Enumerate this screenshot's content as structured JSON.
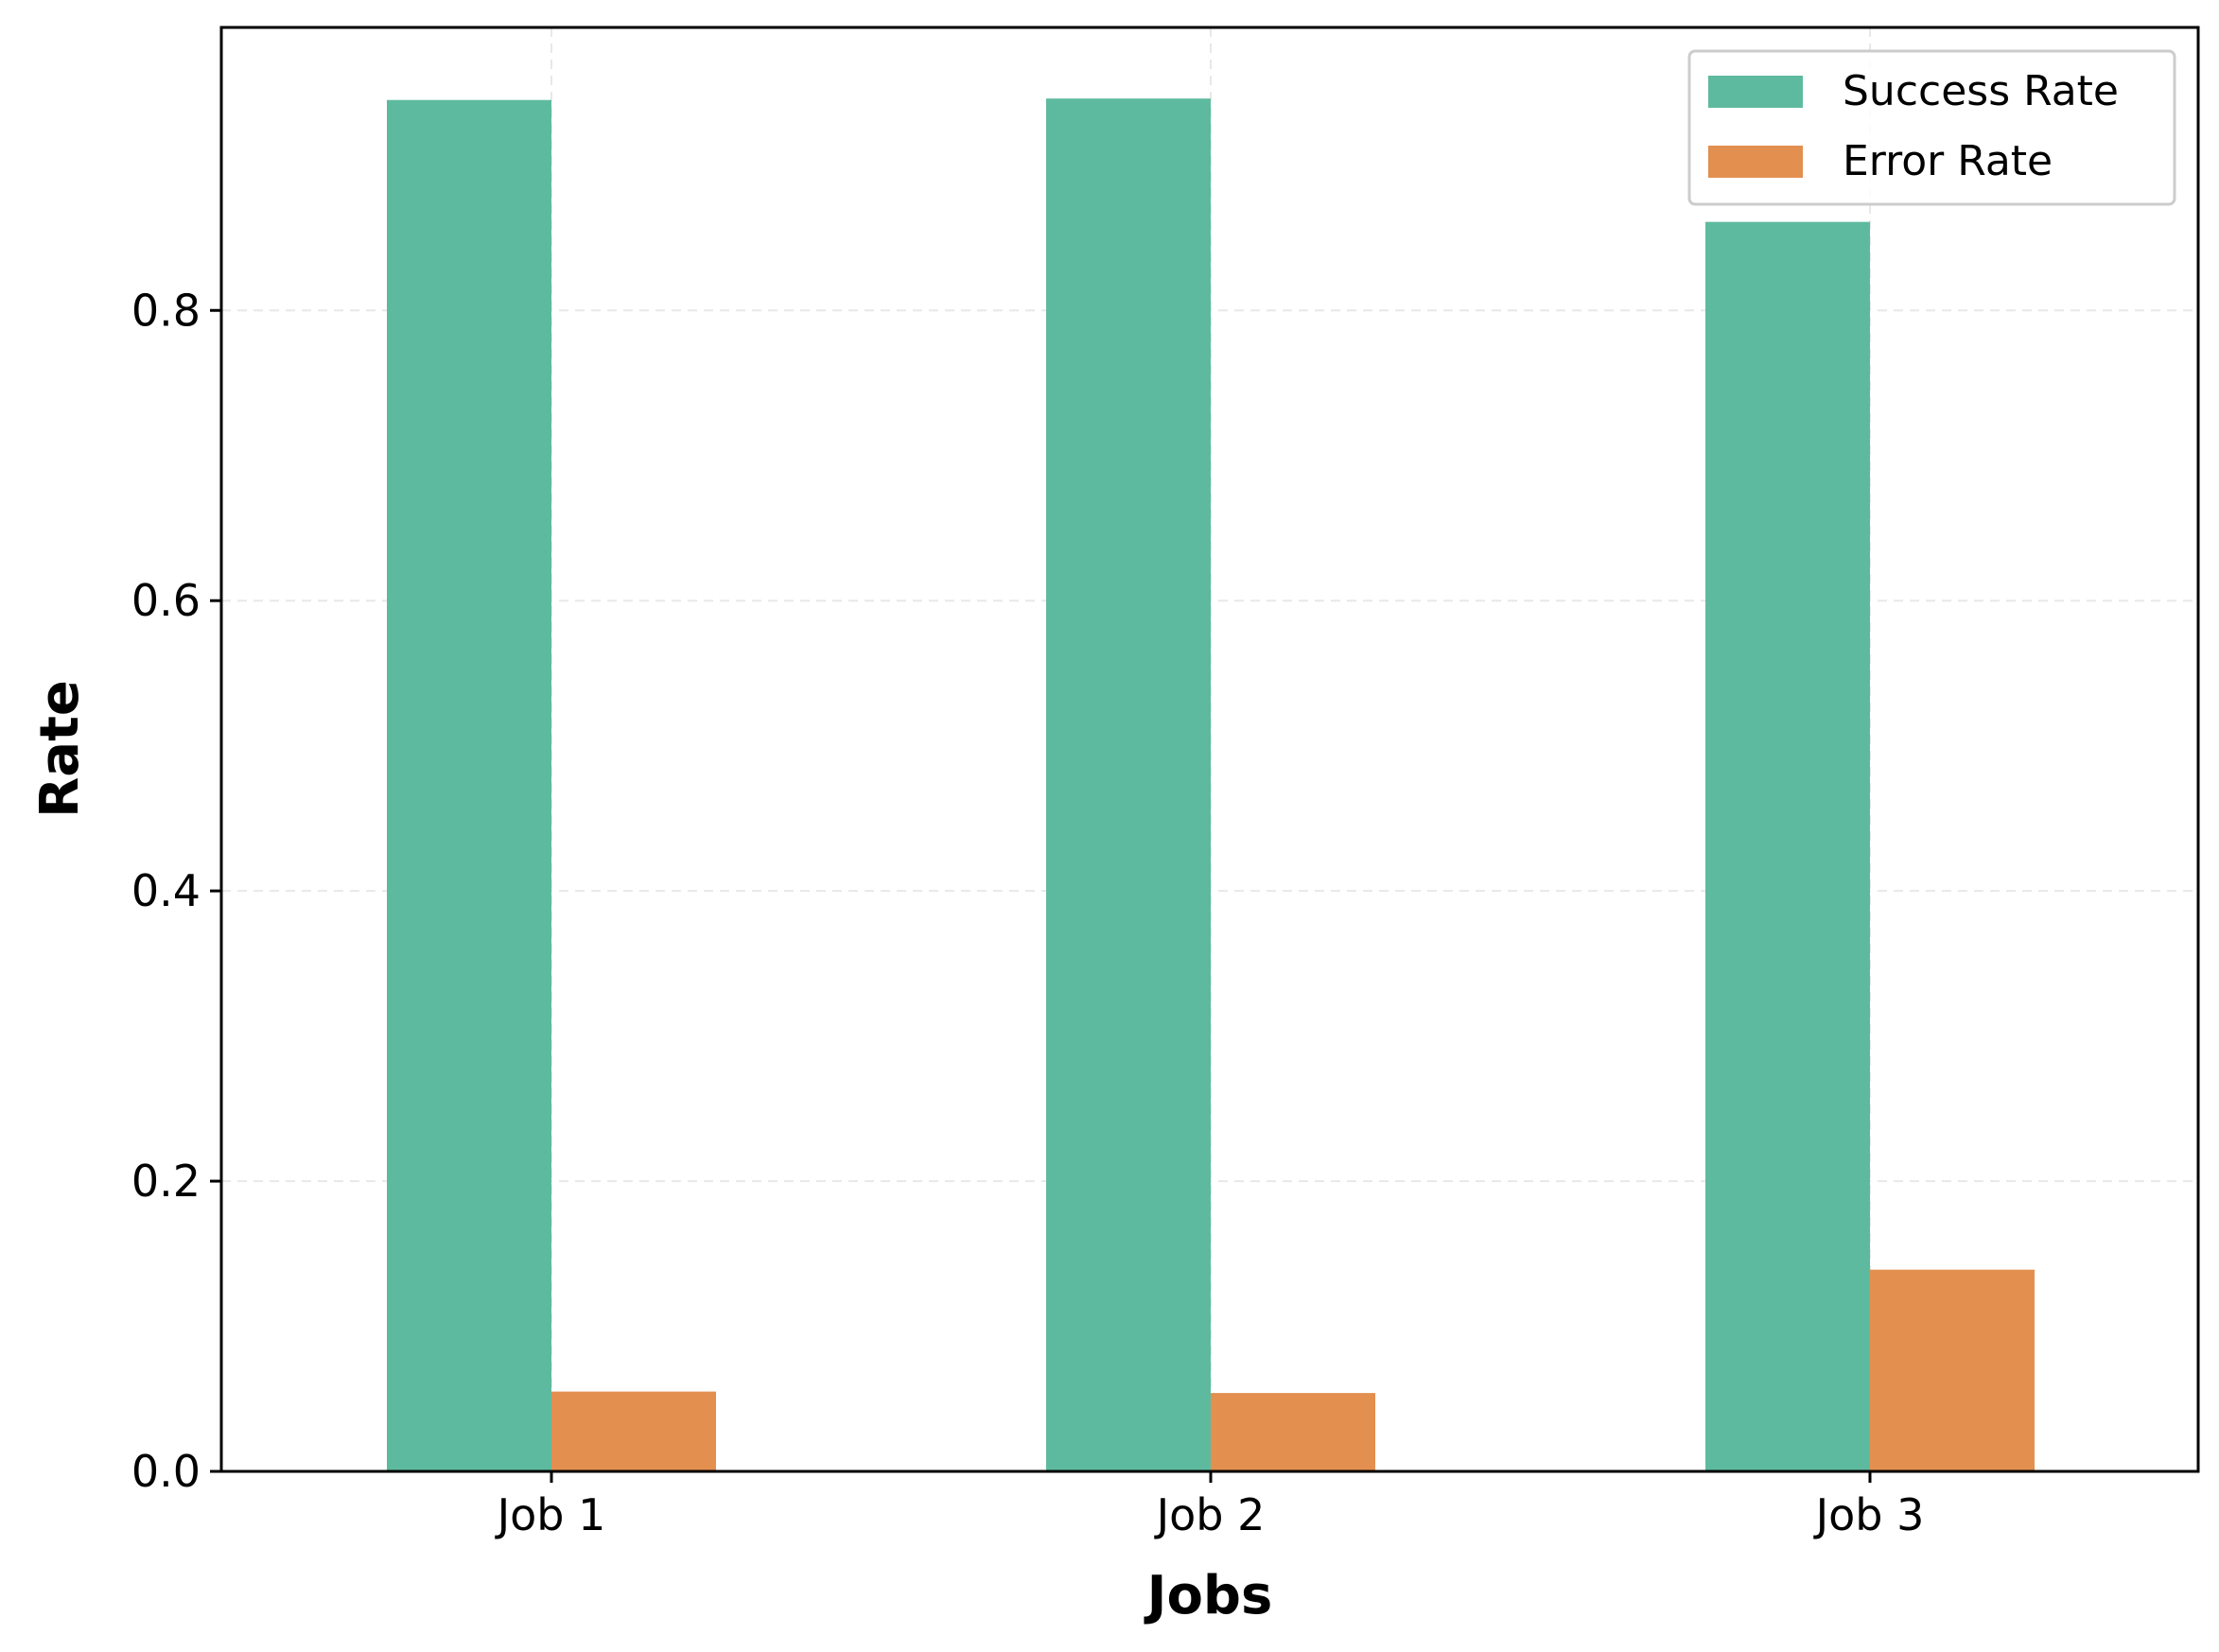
{
  "chart_data": {
    "type": "bar",
    "title": "",
    "xlabel": "Jobs",
    "ylabel": "Rate",
    "categories": [
      "Job 1",
      "Job 2",
      "Job 3"
    ],
    "series": [
      {
        "name": "Success Rate",
        "values": [
          0.945,
          0.946,
          0.861
        ],
        "color": "#5eba9e"
      },
      {
        "name": "Error Rate",
        "values": [
          0.055,
          0.054,
          0.139
        ],
        "color": "#e38f4f"
      }
    ],
    "ylim": [
      0,
      0.995
    ],
    "yticks": [
      0.0,
      0.2,
      0.4,
      0.6,
      0.8
    ],
    "ytick_labels": [
      "0.0",
      "0.2",
      "0.4",
      "0.6",
      "0.8"
    ],
    "grid": true,
    "legend": "top-right"
  }
}
